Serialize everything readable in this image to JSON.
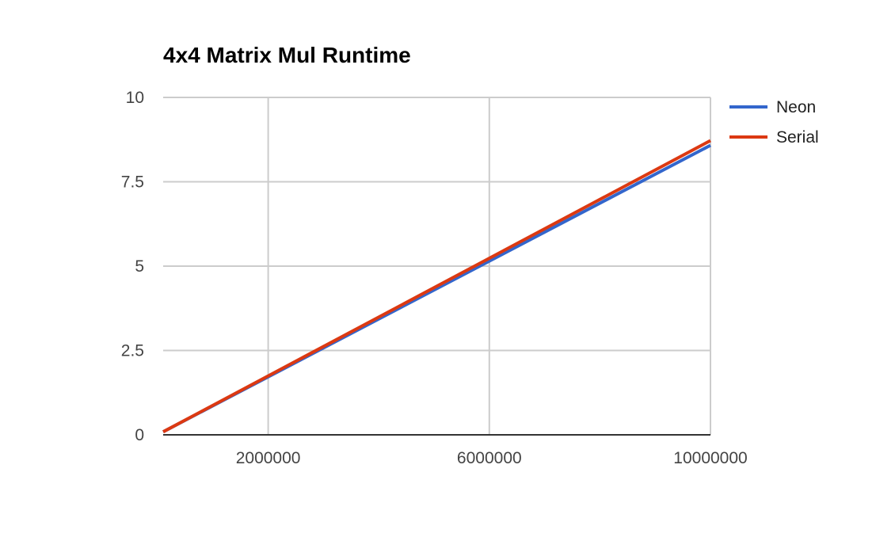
{
  "chart_data": {
    "type": "line",
    "title": "4x4 Matrix Mul Runtime",
    "xlabel": "",
    "ylabel": "",
    "xlim": [
      100000,
      10000000
    ],
    "ylim": [
      0,
      10
    ],
    "x_ticks": [
      {
        "value": 2000000,
        "label": "2000000"
      },
      {
        "value": 6000000,
        "label": "6000000"
      },
      {
        "value": 10000000,
        "label": "10000000"
      }
    ],
    "y_ticks": [
      {
        "value": 0,
        "label": "0"
      },
      {
        "value": 2.5,
        "label": "2.5"
      },
      {
        "value": 5,
        "label": "5"
      },
      {
        "value": 7.5,
        "label": "7.5"
      },
      {
        "value": 10,
        "label": "10"
      }
    ],
    "grid": true,
    "legend_position": "right",
    "series": [
      {
        "name": "Neon",
        "color": "#3366cc",
        "x": [
          100000,
          10000000
        ],
        "y": [
          0.09,
          8.58
        ]
      },
      {
        "name": "Serial",
        "color": "#dc3912",
        "x": [
          100000,
          10000000
        ],
        "y": [
          0.09,
          8.72
        ]
      }
    ]
  }
}
